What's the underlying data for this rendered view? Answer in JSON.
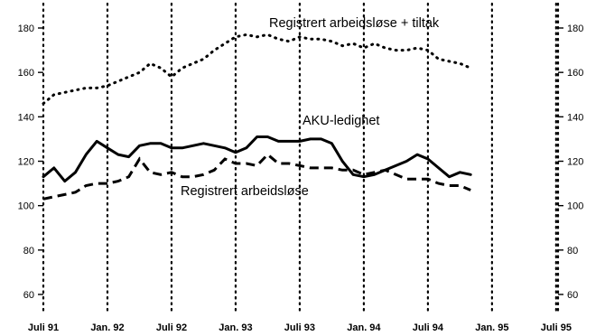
{
  "chart_data": {
    "type": "line",
    "title": "",
    "xlabel": "",
    "ylabel": "",
    "ylim": [
      60,
      180
    ],
    "yticks": [
      60,
      80,
      100,
      120,
      140,
      160,
      180
    ],
    "xticks": [
      "Juli 91",
      "Jan. 92",
      "Juli 92",
      "Jan. 93",
      "Juli 93",
      "Jan. 94",
      "Juli 94",
      "Jan. 95",
      "Juli 95"
    ],
    "xtick_month_index": [
      0,
      6,
      12,
      18,
      24,
      30,
      36,
      42,
      48
    ],
    "grid": "vertical dotted lines at each x tick",
    "series": [
      {
        "name": "Registrert arbeidsløse + tiltak",
        "style": "dotted",
        "x": [
          0,
          1,
          2,
          3,
          4,
          5,
          6,
          7,
          8,
          9,
          10,
          11,
          12,
          13,
          14,
          15,
          16,
          17,
          18,
          19,
          20,
          21,
          22,
          23,
          24,
          25,
          26,
          27,
          28,
          29,
          30,
          31,
          32,
          33,
          34,
          35,
          36,
          37,
          38,
          39,
          40
        ],
        "values": [
          146,
          150,
          151,
          152,
          153,
          153,
          154,
          156,
          158,
          160,
          164,
          162,
          158,
          162,
          164,
          166,
          170,
          173,
          176,
          177,
          176,
          177,
          175,
          174,
          176,
          175,
          175,
          174,
          172,
          173,
          171,
          173,
          171,
          170,
          170,
          171,
          170,
          166,
          165,
          164,
          162
        ]
      },
      {
        "name": "AKU-ledighet",
        "style": "solid",
        "x": [
          0,
          1,
          2,
          3,
          4,
          5,
          6,
          7,
          8,
          9,
          10,
          11,
          12,
          13,
          14,
          15,
          16,
          17,
          18,
          19,
          20,
          21,
          22,
          23,
          24,
          25,
          26,
          27,
          28,
          29,
          30,
          31,
          32,
          33,
          34,
          35,
          36,
          37,
          38,
          39,
          40
        ],
        "values": [
          113,
          117,
          111,
          115,
          123,
          129,
          126,
          123,
          122,
          127,
          128,
          128,
          126,
          126,
          127,
          128,
          127,
          126,
          124,
          126,
          131,
          131,
          129,
          129,
          129,
          130,
          130,
          128,
          120,
          114,
          113,
          114,
          116,
          118,
          120,
          123,
          121,
          117,
          113,
          115,
          114
        ]
      },
      {
        "name": "Registrert arbeidsløse",
        "style": "dashed",
        "x": [
          0,
          1,
          2,
          3,
          4,
          5,
          6,
          7,
          8,
          9,
          10,
          11,
          12,
          13,
          14,
          15,
          16,
          17,
          18,
          19,
          20,
          21,
          22,
          23,
          24,
          25,
          26,
          27,
          28,
          29,
          30,
          31,
          32,
          33,
          34,
          35,
          36,
          37,
          38,
          39,
          40
        ],
        "values": [
          103,
          104,
          105,
          106,
          109,
          110,
          110,
          111,
          113,
          121,
          115,
          114,
          115,
          113,
          113,
          114,
          116,
          121,
          119,
          119,
          118,
          123,
          119,
          119,
          118,
          117,
          117,
          117,
          116,
          116,
          114,
          115,
          116,
          114,
          112,
          112,
          112,
          110,
          109,
          109,
          107
        ]
      }
    ],
    "annotations": [
      {
        "text": "Registrert arbeidsløse + tiltak",
        "series": 0
      },
      {
        "text": "AKU-ledighet",
        "series": 1
      },
      {
        "text": "Registrert arbeidsløse",
        "series": 2
      }
    ]
  }
}
